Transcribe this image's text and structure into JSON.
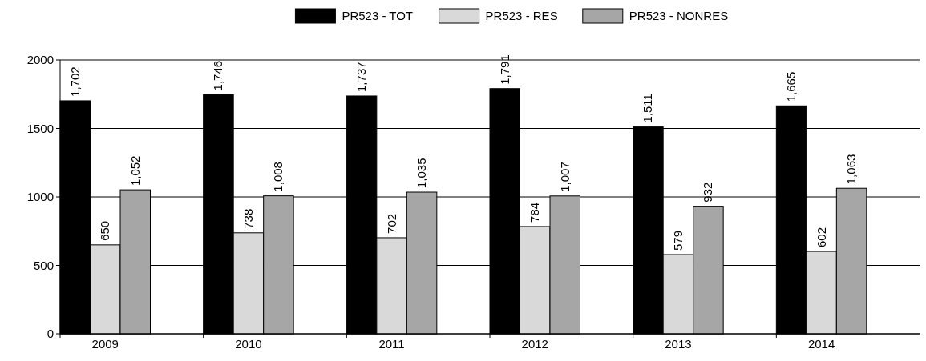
{
  "chart_data": {
    "type": "bar",
    "categories": [
      "2009",
      "2010",
      "2011",
      "2012",
      "2013",
      "2014"
    ],
    "series": [
      {
        "name": "PR523 - TOT",
        "color": "#000000",
        "values": [
          1702,
          1746,
          1737,
          1791,
          1511,
          1665
        ],
        "value_labels": [
          "1,702",
          "1,746",
          "1,737",
          "1,791",
          "1,511",
          "1,665"
        ]
      },
      {
        "name": "PR523 - RES",
        "color": "#d9d9d9",
        "values": [
          650,
          738,
          702,
          784,
          579,
          602
        ],
        "value_labels": [
          "650",
          "738",
          "702",
          "784",
          "579",
          "602"
        ]
      },
      {
        "name": "PR523 - NONRES",
        "color": "#a6a6a6",
        "values": [
          1052,
          1008,
          1035,
          1007,
          932,
          1063
        ],
        "value_labels": [
          "1,052",
          "1,008",
          "1,035",
          "1,007",
          "932",
          "1,063"
        ]
      }
    ],
    "ylim": [
      0,
      2000
    ],
    "yticks": [
      0,
      500,
      1000,
      1500,
      2000
    ],
    "grid": "y",
    "legend": "top"
  }
}
